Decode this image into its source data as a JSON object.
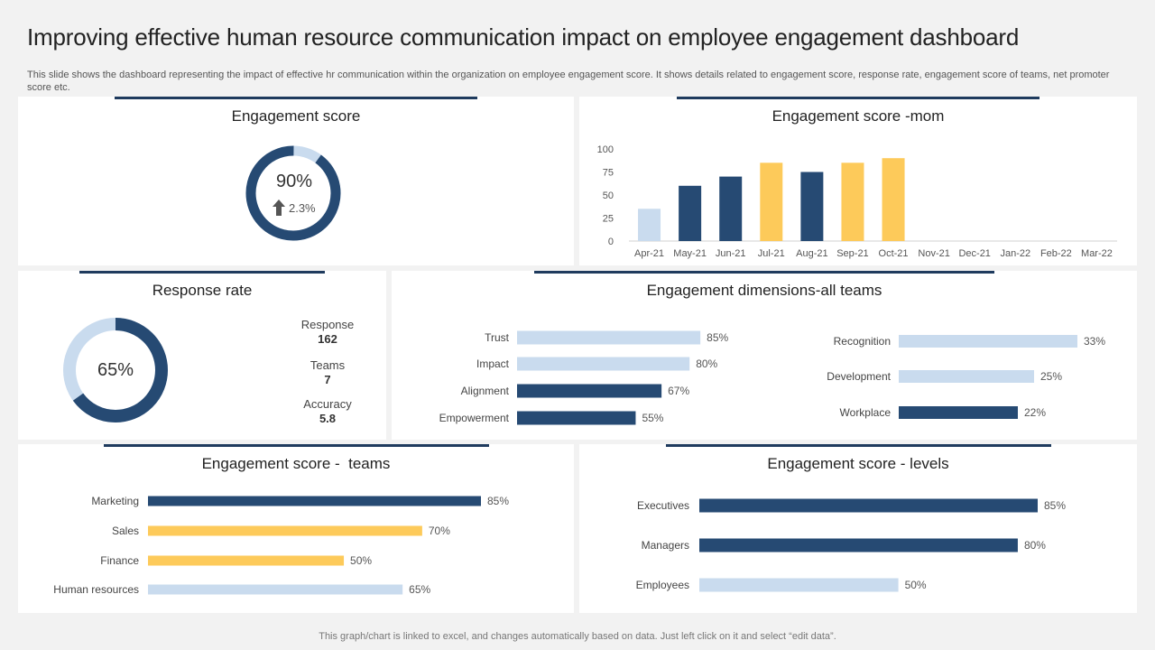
{
  "page": {
    "title": "Improving effective human resource communication impact on employee engagement dashboard",
    "description": "This slide shows the dashboard representing the impact of effective hr communication within the organization on employee engagement score. It shows details related to engagement score, response rate, engagement score of teams, net promoter score etc.",
    "footer": "This graph/chart is linked to excel, and changes automatically based on data. Just left click on it and select “edit data”."
  },
  "colors": {
    "navy": "#264a73",
    "light": "#c9dbee",
    "gold": "#fdca5a",
    "accent_line": "#1f3b5e"
  },
  "chart_data": [
    {
      "id": "engagement_score",
      "type": "pie",
      "title": "Engagement score",
      "values": [
        90,
        10
      ],
      "center_value": "90%",
      "change": "2.3%",
      "change_icon": "arrow-up-icon"
    },
    {
      "id": "engagement_mom",
      "type": "bar",
      "title": "Engagement score -mom",
      "categories": [
        "Apr-21",
        "May-21",
        "Jun-21",
        "Jul-21",
        "Aug-21",
        "Sep-21",
        "Oct-21",
        "Nov-21",
        "Dec-21",
        "Jan-22",
        "Feb-22",
        "Mar-22"
      ],
      "values": [
        35,
        60,
        70,
        85,
        75,
        85,
        90,
        null,
        null,
        null,
        null,
        null
      ],
      "bar_colors": [
        "light",
        "navy",
        "navy",
        "gold",
        "navy",
        "gold",
        "gold",
        "navy",
        "navy",
        "navy",
        "navy",
        "navy"
      ],
      "yticks": [
        0,
        25,
        50,
        75,
        100
      ],
      "ylim": [
        0,
        100
      ]
    },
    {
      "id": "response_rate",
      "type": "pie",
      "title": "Response rate",
      "values": [
        65,
        35
      ],
      "center_value": "65%",
      "stats": [
        {
          "label": "Response",
          "value": "162"
        },
        {
          "label": "Teams",
          "value": "7"
        },
        {
          "label": "Accuracy",
          "value": "5.8"
        }
      ]
    },
    {
      "id": "dimensions_all_teams",
      "type": "bar",
      "orientation": "horizontal",
      "title": "Engagement dimensions-all teams",
      "groups": [
        {
          "categories": [
            "Trust",
            "Impact",
            "Alignment",
            "Empowerment"
          ],
          "values": [
            85,
            80,
            67,
            55
          ],
          "labels": [
            "85%",
            "80%",
            "67%",
            "55%"
          ],
          "bar_colors": [
            "light",
            "light",
            "navy",
            "navy"
          ],
          "xlim": [
            0,
            100
          ]
        },
        {
          "categories": [
            "Recognition",
            "Development",
            "Workplace"
          ],
          "values": [
            33,
            25,
            22
          ],
          "labels": [
            "33%",
            "25%",
            "22%"
          ],
          "bar_colors": [
            "light",
            "light",
            "navy"
          ],
          "xlim": [
            0,
            33
          ]
        }
      ]
    },
    {
      "id": "engagement_teams",
      "type": "bar",
      "orientation": "horizontal",
      "title": "Engagement score -  teams",
      "categories": [
        "Marketing",
        "Sales",
        "Finance",
        "Human resources"
      ],
      "values": [
        85,
        70,
        50,
        65
      ],
      "labels": [
        "85%",
        "70%",
        "50%",
        "65%"
      ],
      "bar_colors": [
        "navy",
        "gold",
        "gold",
        "light"
      ],
      "xlim": [
        0,
        85
      ]
    },
    {
      "id": "engagement_levels",
      "type": "bar",
      "orientation": "horizontal",
      "title": "Engagement score - levels",
      "categories": [
        "Executives",
        "Managers",
        "Employees"
      ],
      "values": [
        85,
        80,
        50
      ],
      "labels": [
        "85%",
        "80%",
        "50%"
      ],
      "bar_colors": [
        "navy",
        "navy",
        "light"
      ],
      "xlim": [
        0,
        85
      ]
    }
  ]
}
